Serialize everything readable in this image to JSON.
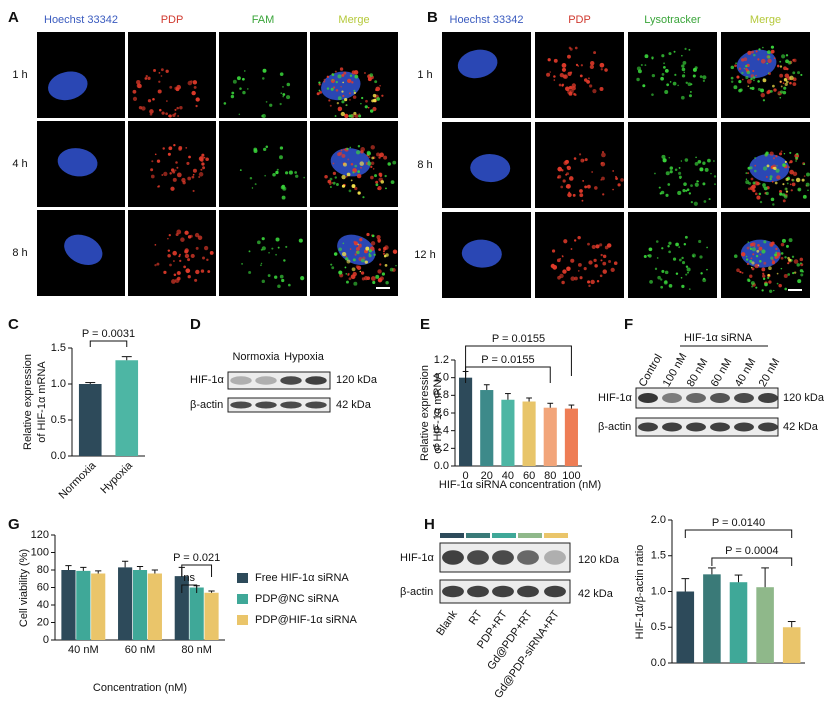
{
  "panel_letters": [
    "A",
    "B",
    "C",
    "D",
    "E",
    "F",
    "G",
    "H"
  ],
  "panel_a": {
    "columns": [
      "Hoechst 33342",
      "PDP",
      "FAM",
      "Merge"
    ],
    "rows": [
      "1 h",
      "4 h",
      "8 h"
    ]
  },
  "panel_b": {
    "columns": [
      "Hoechst 33342",
      "PDP",
      "Lysotracker",
      "Merge"
    ],
    "rows": [
      "1 h",
      "8 h",
      "12 h"
    ]
  },
  "panel_d": {
    "groups": [
      "Normoxia",
      "Hypoxia"
    ],
    "rows": [
      "HIF-1α",
      "β-actin"
    ],
    "sizes": [
      "120 kDa",
      "42 kDa"
    ]
  },
  "panel_f": {
    "treatment": "HIF-1α siRNA",
    "lanes": [
      "Control",
      "100 nM",
      "80 nM",
      "60 nM",
      "40 nM",
      "20 nM"
    ],
    "rows": [
      "HIF-1α",
      "β-actin"
    ],
    "sizes": [
      "120 kDa",
      "42 kDa"
    ]
  },
  "panel_h_blot": {
    "rows": [
      "HIF-1α",
      "β-actin"
    ],
    "sizes": [
      "120 kDa",
      "42 kDa"
    ]
  },
  "chart_data": [
    {
      "type": "bar",
      "ylabel": [
        "Relative expression",
        "of HIF-1α mRNA"
      ],
      "categories": [
        "Normoxia",
        "Hypoxia"
      ],
      "values": [
        1.0,
        1.33
      ],
      "errors": [
        0.02,
        0.05
      ],
      "colors": [
        "#2d4a5a",
        "#4db6a4"
      ],
      "ylim": [
        0,
        1.5
      ],
      "yticks": [
        {
          "value": 0,
          "label": "0.0"
        },
        0.5,
        {
          "value": 1,
          "label": "1.0"
        },
        1.5
      ],
      "annotations": [
        "P = 0.0031"
      ]
    },
    {
      "type": "bar",
      "ylabel": [
        "Relative expression",
        "of HIF-1α mRNA"
      ],
      "xlabel": "HIF-1α siRNA concentration (nM)",
      "categories": [
        "0",
        "20",
        "40",
        "60",
        "80",
        "100"
      ],
      "values": [
        1.0,
        0.86,
        0.75,
        0.73,
        0.66,
        0.65
      ],
      "errors": [
        0.07,
        0.06,
        0.07,
        0.04,
        0.05,
        0.04
      ],
      "colors": [
        "#2d4a5a",
        "#3d8a8a",
        "#4db6a4",
        "#e8c56a",
        "#f2a57a",
        "#ee7d55"
      ],
      "ylim": [
        0,
        1.2
      ],
      "yticks": [
        {
          "value": 0,
          "label": "0.0"
        },
        0.2,
        0.4,
        0.6,
        0.8,
        {
          "value": 1,
          "label": "1.0"
        },
        1.2
      ],
      "annotations": [
        "P = 0.0155",
        "P = 0.0155"
      ]
    },
    {
      "type": "bar",
      "ylabel": "Cell viability (%)",
      "xlabel": "Concentration (nM)",
      "categories": [
        "40 nM",
        "60 nM",
        "80 nM"
      ],
      "series": [
        {
          "name": "Free HIF-1α siRNA",
          "color": "#2d4a5a",
          "values": [
            80,
            83,
            73
          ],
          "errors": [
            5,
            7,
            10
          ]
        },
        {
          "name": "PDP@NC siRNA",
          "color": "#3fa898",
          "values": [
            79,
            80,
            60
          ],
          "errors": [
            4,
            4,
            2
          ]
        },
        {
          "name": "PDP@HIF-1α siRNA",
          "color": "#eac56a",
          "values": [
            76,
            76,
            54
          ],
          "errors": [
            3,
            4,
            2
          ]
        }
      ],
      "ylim": [
        0,
        120
      ],
      "yticks": [
        0,
        20,
        40,
        60,
        80,
        100,
        120
      ],
      "annotations": [
        "ns",
        "P = 0.021"
      ]
    },
    {
      "type": "bar",
      "ylabel": "HIF-1α/β-actin ratio",
      "categories": [
        "Blank",
        "RT",
        "PDP+RT",
        "Gd@PDP+RT",
        "Gd@PDP-siRNA+RT"
      ],
      "values": [
        1.0,
        1.24,
        1.13,
        1.06,
        0.5
      ],
      "errors": [
        0.18,
        0.09,
        0.1,
        0.27,
        0.08
      ],
      "colors": [
        "#2d4a5a",
        "#3a7a78",
        "#3fa898",
        "#8fb88a",
        "#eac56a"
      ],
      "ylim": [
        0,
        2.0
      ],
      "yticks": [
        {
          "value": 0,
          "label": "0.0"
        },
        0.5,
        {
          "value": 1,
          "label": "1.0"
        },
        1.5,
        {
          "value": 2,
          "label": "2.0"
        }
      ],
      "annotations": [
        "P = 0.0140",
        "P = 0.0004"
      ]
    }
  ]
}
